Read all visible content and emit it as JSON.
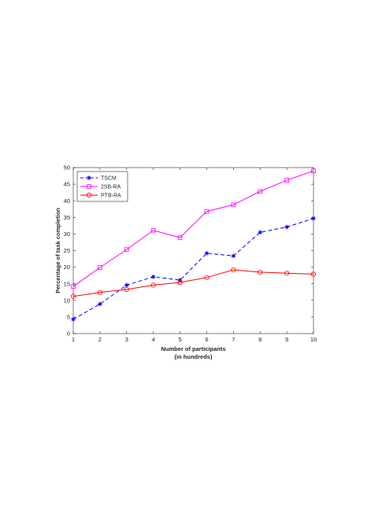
{
  "chart_data": {
    "type": "line",
    "x": [
      1,
      2,
      3,
      4,
      5,
      6,
      7,
      8,
      9,
      10
    ],
    "series": [
      {
        "name": "TSCM",
        "values": [
          4.3,
          8.9,
          14.6,
          17.1,
          16.1,
          24.2,
          23.4,
          30.5,
          32.1,
          34.7
        ],
        "color": "#0000ff",
        "dash": "dashed",
        "marker": "asterisk"
      },
      {
        "name": "2SB-RA",
        "values": [
          14.2,
          19.9,
          25.3,
          31.1,
          28.9,
          36.8,
          38.8,
          42.8,
          46.2,
          49.0
        ],
        "color": "#ff00ff",
        "dash": "solid",
        "marker": "square"
      },
      {
        "name": "PTB-RA",
        "values": [
          11.2,
          12.4,
          13.3,
          14.6,
          15.4,
          16.9,
          19.2,
          18.5,
          18.2,
          17.9
        ],
        "color": "#ff0000",
        "dash": "solid",
        "marker": "circle"
      }
    ],
    "xlabel": [
      "Number of participants",
      "(in hundreds)"
    ],
    "ylabel": "Percentage of task completion",
    "xlim": [
      1,
      10
    ],
    "ylim": [
      0,
      50
    ],
    "xticks": [
      "1",
      "2",
      "3",
      "4",
      "5",
      "6",
      "7",
      "8",
      "9",
      "10"
    ],
    "yticks": [
      "0",
      "5",
      "10",
      "15",
      "20",
      "25",
      "30",
      "35",
      "40",
      "45",
      "50"
    ],
    "grid": false,
    "legend": "top-left"
  }
}
